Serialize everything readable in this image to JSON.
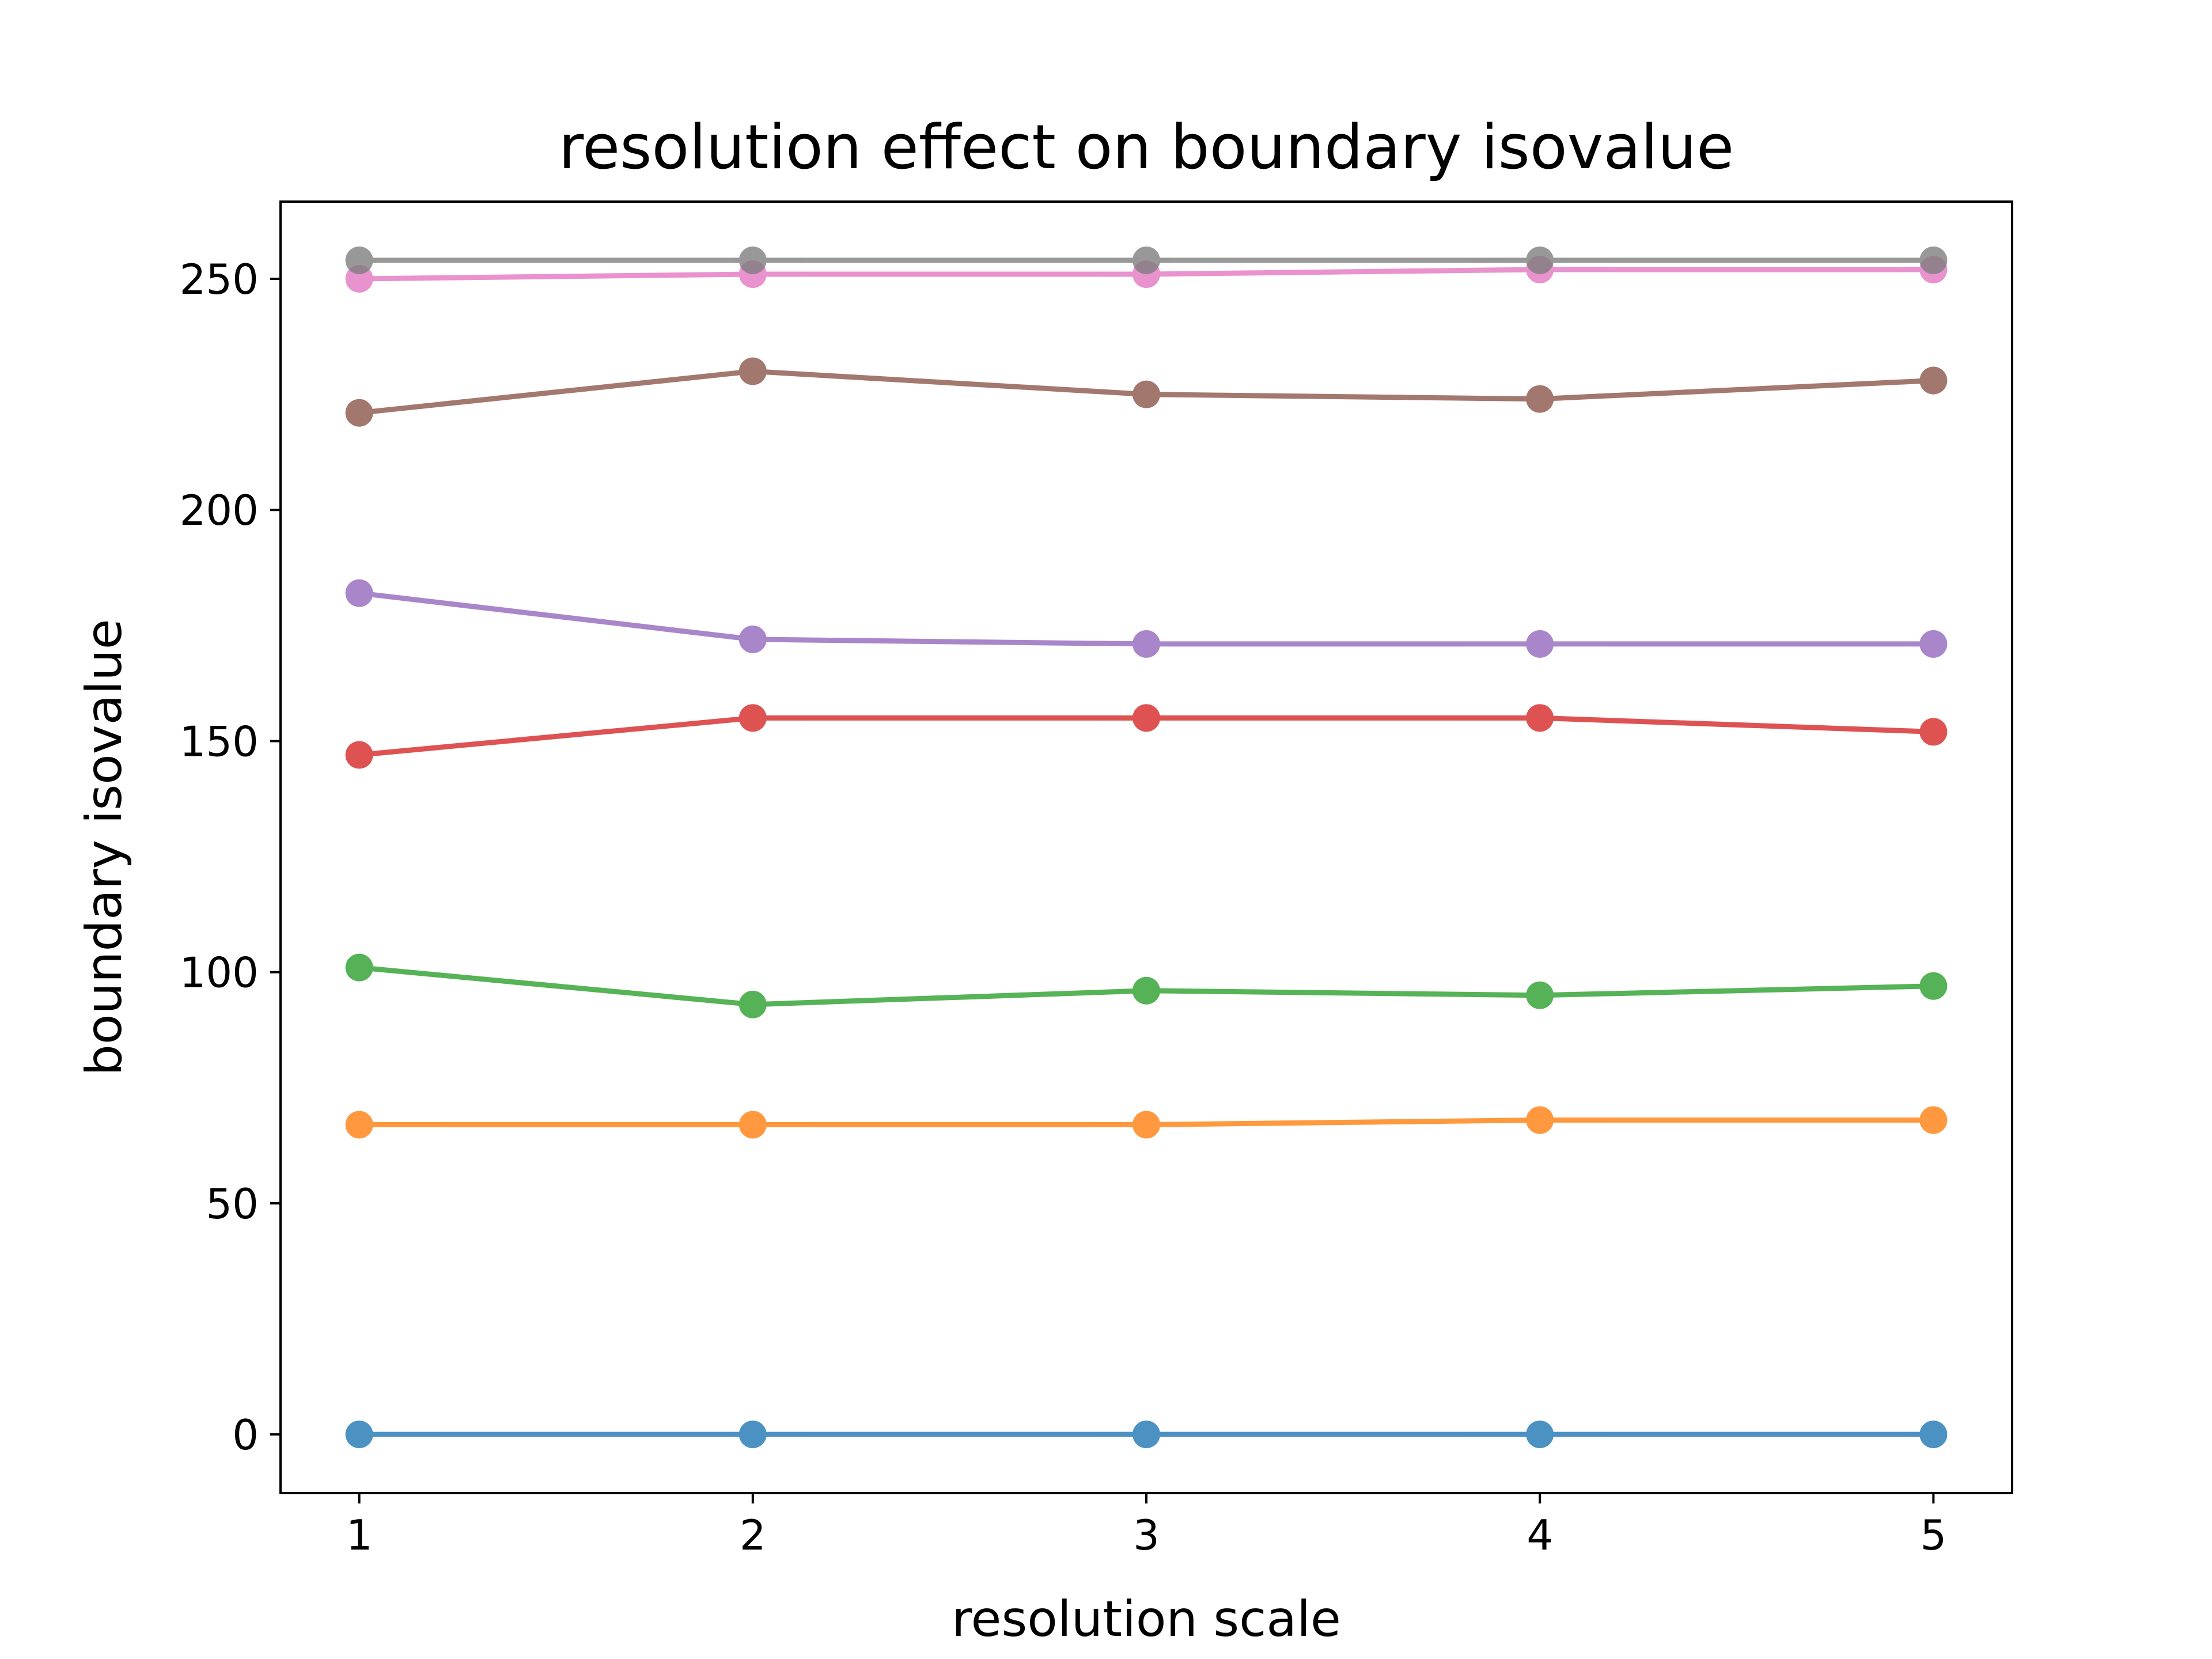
{
  "chart_data": {
    "type": "line",
    "title": "resolution effect on boundary isovalue",
    "xlabel": "resolution scale",
    "ylabel": "boundary isovalue",
    "x": [
      1,
      2,
      3,
      4,
      5
    ],
    "xlim": [
      0.8,
      5.2
    ],
    "ylim": [
      -12.7,
      266.7
    ],
    "xticks": [
      1,
      2,
      3,
      4,
      5
    ],
    "yticks": [
      0,
      50,
      100,
      150,
      200,
      250
    ],
    "grid": false,
    "legend": "none",
    "series": [
      {
        "color": "#1f77b4",
        "values": [
          0,
          0,
          0,
          0,
          0
        ]
      },
      {
        "color": "#ff7f0e",
        "values": [
          67,
          67,
          67,
          68,
          68
        ]
      },
      {
        "color": "#2ca02c",
        "values": [
          101,
          93,
          96,
          95,
          97
        ]
      },
      {
        "color": "#d62728",
        "values": [
          147,
          155,
          155,
          155,
          152
        ]
      },
      {
        "color": "#9467bd",
        "values": [
          182,
          172,
          171,
          171,
          171
        ]
      },
      {
        "color": "#8c564b",
        "values": [
          221,
          230,
          225,
          224,
          228
        ]
      },
      {
        "color": "#e377c2",
        "values": [
          250,
          251,
          251,
          252,
          252
        ]
      },
      {
        "color": "#7f7f7f",
        "values": [
          254,
          254,
          254,
          254,
          254
        ]
      }
    ]
  }
}
